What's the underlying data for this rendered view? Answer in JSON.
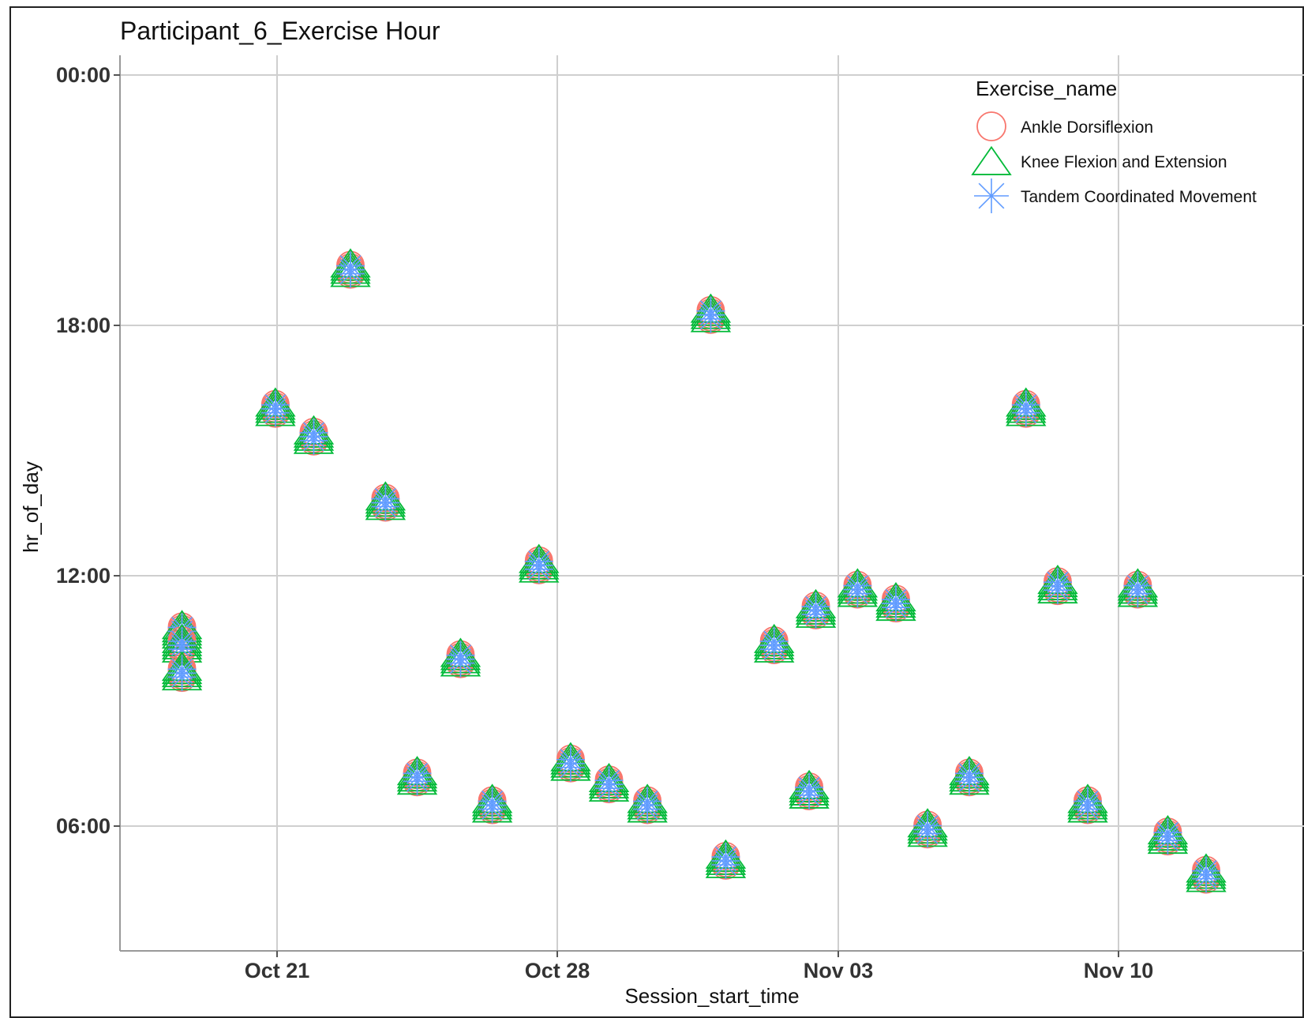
{
  "chart_data": {
    "type": "scatter",
    "title": "Participant_6_Exercise Hour",
    "xlabel": "Session_start_time",
    "ylabel": "hr_of_day",
    "x_ticks": [
      "Oct 21",
      "Oct 28",
      "Nov 03",
      "Nov 10"
    ],
    "y_ticks": [
      "00:00",
      "18:00",
      "12:00",
      "06:00"
    ],
    "y_axis_note": "time axis reversed: 00:00 at top, 06:00 near bottom",
    "legend": {
      "title": "Exercise_name",
      "position": "top-right",
      "entries": [
        "Ankle Dorsiflexion",
        "Knee Flexion and Extension",
        "Tandem Coordinated Movement"
      ]
    },
    "colors": {
      "Ankle Dorsiflexion": "#F8766D",
      "Knee Flexion and Extension": "#00BA38",
      "Tandem Coordinated Movement": "#619CFF"
    },
    "grid": true,
    "sessions": [
      {
        "date": "2020-10-18 15:00",
        "hr": "10:40"
      },
      {
        "date": "2020-10-18 15:00",
        "hr": "10:20"
      },
      {
        "date": "2020-10-18 15:00",
        "hr": "09:40"
      },
      {
        "date": "2020-10-20 23:00",
        "hr": "16:00"
      },
      {
        "date": "2020-10-21 22:00",
        "hr": "15:20"
      },
      {
        "date": "2020-10-22 20:00",
        "hr": "19:20"
      },
      {
        "date": "2020-10-23 17:00",
        "hr": "13:45"
      },
      {
        "date": "2020-10-24 12:00",
        "hr": "07:10"
      },
      {
        "date": "2020-10-25 14:00",
        "hr": "10:00"
      },
      {
        "date": "2020-10-26 09:00",
        "hr": "06:30"
      },
      {
        "date": "2020-10-27 13:00",
        "hr": "12:15"
      },
      {
        "date": "2020-10-28 08:00",
        "hr": "07:30"
      },
      {
        "date": "2020-10-29 07:00",
        "hr": "07:00"
      },
      {
        "date": "2020-10-30 06:00",
        "hr": "06:30"
      },
      {
        "date": "2020-10-31 20:00",
        "hr": "18:15"
      },
      {
        "date": "2020-11-01 05:00",
        "hr": "05:10"
      },
      {
        "date": "2020-11-02 10:00",
        "hr": "10:20"
      },
      {
        "date": "2020-11-03 11:00",
        "hr": "11:10"
      },
      {
        "date": "2020-11-03 07:00",
        "hr": "06:50"
      },
      {
        "date": "2020-11-04 12:00",
        "hr": "11:40"
      },
      {
        "date": "2020-11-05 11:00",
        "hr": "11:20"
      },
      {
        "date": "2020-11-06 06:00",
        "hr": "05:55"
      },
      {
        "date": "2020-11-07 07:00",
        "hr": "07:10"
      },
      {
        "date": "2020-11-08 17:00",
        "hr": "16:00"
      },
      {
        "date": "2020-11-09 12:00",
        "hr": "11:45"
      },
      {
        "date": "2020-11-10 06:00",
        "hr": "06:30"
      },
      {
        "date": "2020-11-11 12:00",
        "hr": "11:40"
      },
      {
        "date": "2020-11-12 06:00",
        "hr": "05:45"
      },
      {
        "date": "2020-11-13 05:00",
        "hr": "04:50"
      }
    ]
  }
}
